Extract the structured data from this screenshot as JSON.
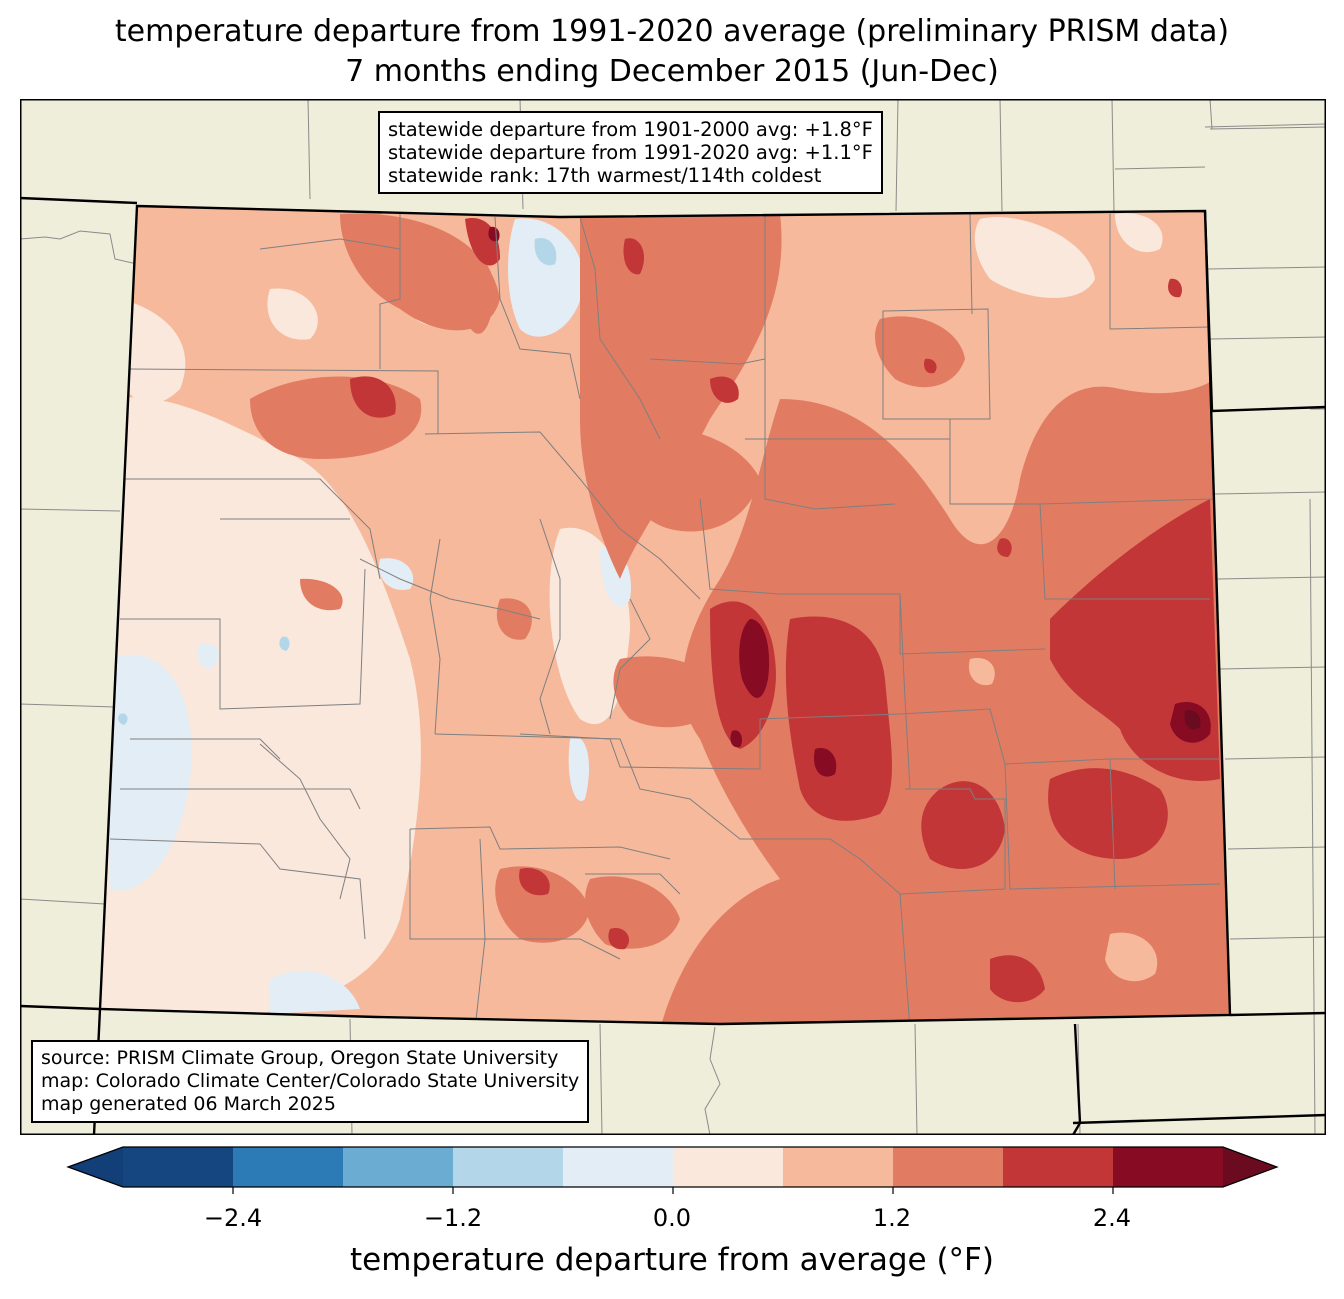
{
  "title": {
    "line1": "temperature departure from 1991-2020 average (preliminary PRISM data)",
    "line2": "7 months ending December 2015 (Jun-Dec)"
  },
  "stats": {
    "line1": "statewide departure from 1901-2000 avg: +1.8°F",
    "line2": "statewide departure from 1991-2020 avg: +1.1°F",
    "line3": "statewide rank: 17th warmest/114th coldest"
  },
  "credits": {
    "line1": "source: PRISM Climate Group, Oregon State University",
    "line2": "map: Colorado Climate Center/Colorado State University",
    "line3": "map generated 06 March 2025"
  },
  "colorbar": {
    "label": "temperature departure from average (°F)",
    "ticks": [
      "−2.4",
      "−1.2",
      "0.0",
      "1.2",
      "2.4"
    ],
    "bin_edges": [
      -3.0,
      -2.4,
      -1.8,
      -1.2,
      -0.6,
      0.0,
      0.6,
      1.2,
      1.8,
      2.4,
      3.0
    ],
    "colors": [
      "#123f78",
      "#15467f",
      "#2c7bb6",
      "#6badd2",
      "#b3d6e8",
      "#e3edf5",
      "#fae8dd",
      "#f6b99c",
      "#e17c63",
      "#c23638",
      "#870b23",
      "#6a0b20"
    ]
  },
  "palette": {
    "land": "#efeedb",
    "state_border": "#000000",
    "county_border": "#808080"
  }
}
